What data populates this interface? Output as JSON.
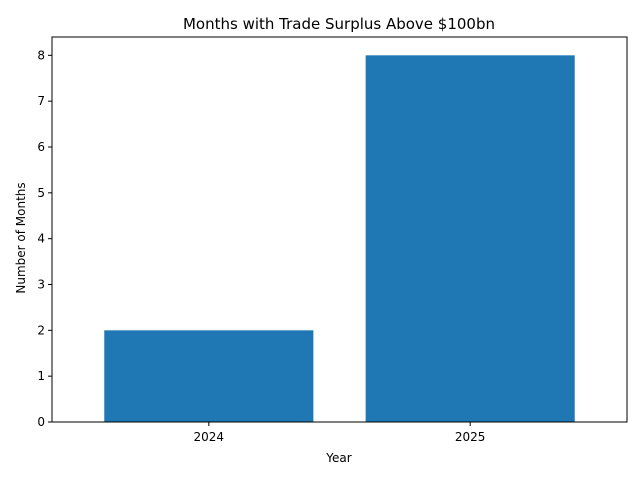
{
  "chart_data": {
    "type": "bar",
    "title": "Months with Trade Surplus Above $100bn",
    "xlabel": "Year",
    "ylabel": "Number of Months",
    "categories": [
      "2024",
      "2025"
    ],
    "values": [
      2,
      8
    ],
    "ylim": [
      0,
      8.4
    ],
    "yticks": [
      0,
      1,
      2,
      3,
      4,
      5,
      6,
      7,
      8
    ],
    "grid": false,
    "legend": "none",
    "bar_color": "#1f77b4"
  }
}
